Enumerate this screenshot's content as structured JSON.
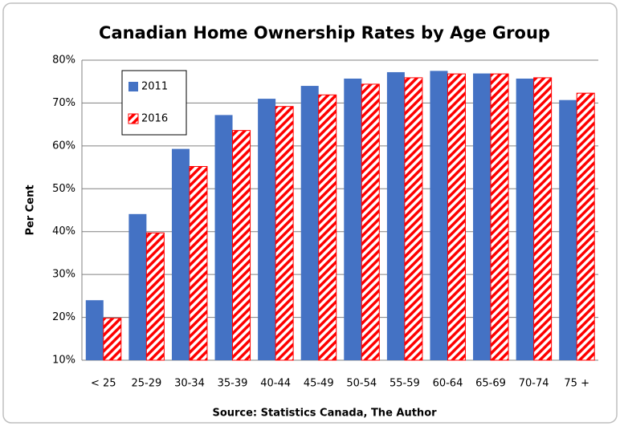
{
  "chart_data": {
    "type": "bar",
    "title": "Canadian Home Ownership Rates by Age Group",
    "y_label": "Per Cent",
    "source": "Source:  Statistics Canada, The Author",
    "categories": [
      "< 25",
      "25-29",
      "30-34",
      "35-39",
      "40-44",
      "45-49",
      "50-54",
      "55-59",
      "60-64",
      "65-69",
      "70-74",
      "75 +"
    ],
    "series": [
      {
        "name": "2011",
        "color": "#4472c4",
        "pattern": "solid",
        "values": [
          24,
          44.1,
          59.3,
          67.2,
          71,
          74,
          75.7,
          77.2,
          77.5,
          76.9,
          75.7,
          70.7
        ]
      },
      {
        "name": "2016",
        "color": "#ff0000",
        "pattern": "diagonal-stripes",
        "values": [
          19.8,
          39.7,
          55.2,
          63.6,
          69.2,
          71.9,
          74.4,
          75.9,
          76.8,
          76.8,
          75.9,
          72.3
        ]
      }
    ],
    "ylim": [
      10,
      80
    ],
    "yticks": [
      {
        "value": 10,
        "label": "10%"
      },
      {
        "value": 20,
        "label": "20%"
      },
      {
        "value": 30,
        "label": "30%"
      },
      {
        "value": 40,
        "label": "40%"
      },
      {
        "value": 50,
        "label": "50%"
      },
      {
        "value": 60,
        "label": "60%"
      },
      {
        "value": 70,
        "label": "70%"
      },
      {
        "value": 80,
        "label": "80%"
      }
    ],
    "grid": true,
    "legend": "top-left"
  }
}
